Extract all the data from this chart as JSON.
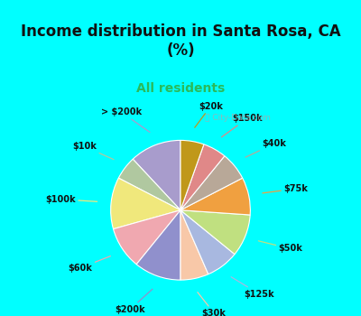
{
  "title": "Income distribution in Santa Rosa, CA\n(%)",
  "subtitle": "All residents",
  "bg_cyan": "#00FFFF",
  "bg_chart": "#d8f0e8",
  "labels": [
    "> $200k",
    "$10k",
    "$100k",
    "$60k",
    "$200k",
    "$30k",
    "$125k",
    "$50k",
    "$75k",
    "$40k",
    "$150k",
    "$20k"
  ],
  "values": [
    11,
    5,
    11,
    9,
    10,
    6,
    7,
    9,
    8,
    6,
    5,
    5
  ],
  "colors": [
    "#a89ccc",
    "#b0c8a0",
    "#f0e87c",
    "#f0a8b0",
    "#9090cc",
    "#f8c8a8",
    "#a8b8e0",
    "#c0e080",
    "#f0a040",
    "#b8a898",
    "#e08888",
    "#c0981a"
  ],
  "startangle": 90,
  "watermark": "City-Data.com",
  "title_fontsize": 12,
  "subtitle_fontsize": 10,
  "label_fontsize": 7
}
